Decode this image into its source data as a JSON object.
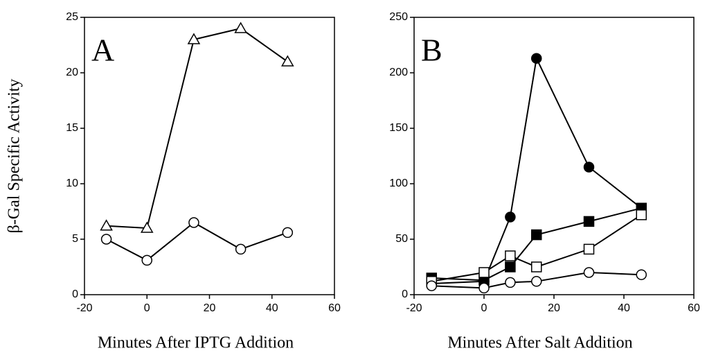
{
  "chart_data": [
    {
      "type": "line",
      "panel_label": "A",
      "ylabel": "β-Gal Specific Activity",
      "xlabel": "Minutes After IPTG Addition",
      "xlim": [
        -20,
        60
      ],
      "xticks": [
        -20,
        0,
        20,
        40,
        60
      ],
      "ylim": [
        0,
        25
      ],
      "yticks": [
        0,
        5,
        10,
        15,
        20,
        25
      ],
      "series": [
        {
          "marker": "triangle",
          "filled": false,
          "color": "#000000",
          "x": [
            -13,
            0,
            15,
            30,
            45
          ],
          "values": [
            6.2,
            6,
            23,
            24,
            21
          ]
        },
        {
          "marker": "circle",
          "filled": false,
          "color": "#000000",
          "x": [
            -13,
            0,
            15,
            30,
            45
          ],
          "values": [
            5,
            3.1,
            6.5,
            4.1,
            5.6
          ]
        }
      ]
    },
    {
      "type": "line",
      "panel_label": "B",
      "xlabel": "Minutes After Salt Addition",
      "xlim": [
        -20,
        60
      ],
      "xticks": [
        -20,
        0,
        20,
        40,
        60
      ],
      "ylim": [
        0,
        250
      ],
      "yticks": [
        0,
        50,
        100,
        150,
        200,
        250
      ],
      "series": [
        {
          "marker": "circle",
          "filled": true,
          "color": "#000000",
          "x": [
            -15,
            0,
            7.5,
            15,
            30,
            45
          ],
          "values": [
            10,
            12,
            70,
            213,
            115,
            78
          ]
        },
        {
          "marker": "square",
          "filled": true,
          "color": "#000000",
          "x": [
            -15,
            0,
            7.5,
            15,
            30,
            45
          ],
          "values": [
            15,
            13,
            25,
            54,
            66,
            78
          ]
        },
        {
          "marker": "square",
          "filled": false,
          "color": "#000000",
          "x": [
            -15,
            0,
            7.5,
            15,
            30,
            45
          ],
          "values": [
            12,
            20,
            35,
            25,
            41,
            72
          ]
        },
        {
          "marker": "circle",
          "filled": false,
          "color": "#000000",
          "x": [
            -15,
            0,
            7.5,
            15,
            30,
            45
          ],
          "values": [
            8,
            6,
            11,
            12,
            20,
            18
          ]
        }
      ]
    }
  ]
}
